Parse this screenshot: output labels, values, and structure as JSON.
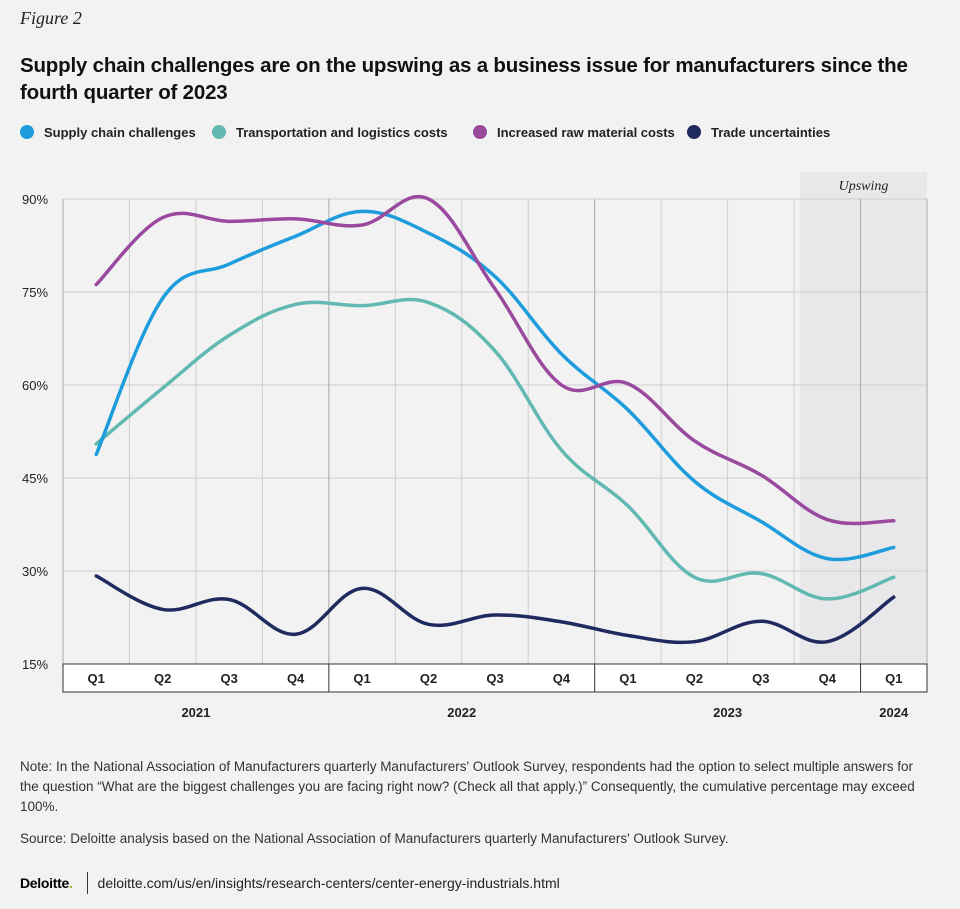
{
  "figure_label": "Figure 2",
  "title": "Supply chain challenges are on the upswing as a business issue for manufacturers since the fourth quarter of 2023",
  "note": "Note: In the National Association of Manufacturers quarterly Manufacturers' Outlook Survey, respondents had the option to select multiple answers for the question “What are the biggest challenges you are facing right now? (Check all that apply.)” Consequently, the cumulative percentage may exceed 100%.",
  "source": "Source: Deloitte analysis based on the National Association of Manufacturers quarterly Manufacturers' Outlook Survey.",
  "footer": {
    "brand": "Deloitte",
    "brand_dot": ".",
    "url": "deloitte.com/us/en/insights/research-centers/center-energy-industrials.html"
  },
  "colors": {
    "supply": "#1e9cdc",
    "transport": "#62b9b2",
    "raw": "#9a4a9e",
    "trade": "#1f2a5e",
    "grid": "#cfcfcf",
    "brand_accent": "#86bc25"
  },
  "chart_data": {
    "type": "line",
    "title": "Supply chain challenges are on the upswing as a business issue for manufacturers since the fourth quarter of 2023",
    "xlabel": "",
    "ylabel": "",
    "ylim": [
      15,
      90
    ],
    "yticks": [
      15,
      30,
      45,
      60,
      75,
      90
    ],
    "ytick_labels": [
      "15%",
      "30%",
      "45%",
      "60%",
      "75%",
      "90%"
    ],
    "grid": true,
    "legend": "top",
    "categories": [
      "Q1",
      "Q2",
      "Q3",
      "Q4",
      "Q1",
      "Q2",
      "Q3",
      "Q4",
      "Q1",
      "Q2",
      "Q3",
      "Q4",
      "Q1"
    ],
    "years": [
      {
        "label": "2021",
        "start": 0,
        "end": 3
      },
      {
        "label": "2022",
        "start": 4,
        "end": 7
      },
      {
        "label": "2023",
        "start": 8,
        "end": 11
      },
      {
        "label": "2024",
        "start": 12,
        "end": 12
      }
    ],
    "highlight": {
      "label": "Upswing",
      "start": 11,
      "end": 12
    },
    "series": [
      {
        "name": "Supply chain challenges",
        "color_key": "supply",
        "values": [
          48.8,
          74.0,
          79.5,
          84.0,
          88.0,
          84.5,
          77.5,
          65.0,
          56.0,
          44.5,
          38.0,
          32.0,
          33.8
        ]
      },
      {
        "name": "Transportation and logistics costs",
        "color_key": "transport",
        "values": [
          50.5,
          59.5,
          68.0,
          73.0,
          72.8,
          73.3,
          65.5,
          49.5,
          40.5,
          29.0,
          29.6,
          25.5,
          29.0
        ]
      },
      {
        "name": "Increased raw material costs",
        "color_key": "raw",
        "values": [
          76.2,
          87.0,
          86.4,
          86.8,
          85.8,
          90.0,
          75.5,
          60.0,
          60.2,
          51.0,
          45.5,
          38.3,
          38.1
        ]
      },
      {
        "name": "Trade uncertainties",
        "color_key": "trade",
        "values": [
          29.2,
          23.8,
          25.4,
          19.8,
          27.2,
          21.4,
          22.9,
          21.8,
          19.6,
          18.6,
          21.9,
          18.6,
          25.8
        ]
      }
    ]
  }
}
